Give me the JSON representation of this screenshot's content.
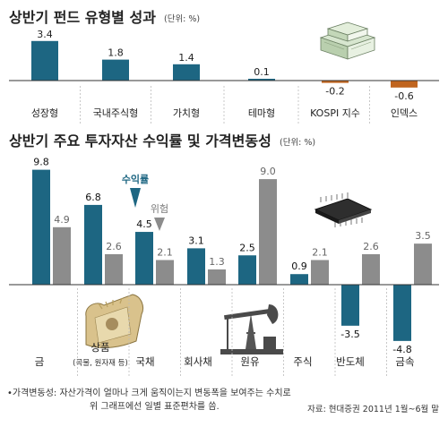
{
  "chart_data": [
    {
      "type": "bar",
      "title": "상반기 펀드 유형별 성과",
      "unit": "(단위: %)",
      "categories": [
        "성장형",
        "국내주식형",
        "가치형",
        "테마형",
        "KOSPI 지수",
        "인덱스"
      ],
      "values": [
        3.4,
        1.8,
        1.4,
        0.1,
        -0.2,
        -0.6
      ],
      "value_labels": [
        "3.4",
        "1.8",
        "1.4",
        "0.1",
        "-0.2",
        "-0.6"
      ],
      "ylim": [
        -1,
        4
      ],
      "colors": {
        "positive": "#1d6682",
        "negative": "#c0651f"
      }
    },
    {
      "type": "bar",
      "title": "상반기 주요 투자자산 수익률 및 가격변동성",
      "unit": "(단위: %)",
      "categories": [
        "금",
        "상품",
        "국채",
        "회사채",
        "원유",
        "주식",
        "반도체",
        "금속"
      ],
      "category_sublabels": [
        "",
        "(곡물, 원자재 등)",
        "",
        "",
        "",
        "",
        "",
        ""
      ],
      "series": [
        {
          "name": "수익률",
          "values": [
            9.8,
            6.8,
            4.5,
            3.1,
            2.5,
            0.9,
            -3.5,
            -4.8
          ],
          "labels": [
            "9.8",
            "6.8",
            "4.5",
            "3.1",
            "2.5",
            "0.9",
            "-3.5",
            "-4.8"
          ],
          "color": "#1d6682"
        },
        {
          "name": "위험",
          "values": [
            4.9,
            2.6,
            2.1,
            1.3,
            9.0,
            2.1,
            2.6,
            3.5
          ],
          "labels": [
            "4.9",
            "2.6",
            "2.1",
            "1.3",
            "9.0",
            "2.1",
            "2.6",
            "3.5"
          ],
          "color": "#8c8c8c"
        }
      ],
      "ylim": [
        -6,
        11
      ]
    }
  ],
  "footnote": {
    "line1": "•가격변동성: 자산가격이 얼마나 크게 움직이는지 변동폭을 보여주는 수치로",
    "line2": "위 그래프에선 일별 표준편차를 씀."
  },
  "source": "자료: 현대증권 2011년 1월~6월 말",
  "icons": [
    "money-stack-icon",
    "grain-sack-icon",
    "microchip-icon",
    "oil-pump-icon"
  ]
}
